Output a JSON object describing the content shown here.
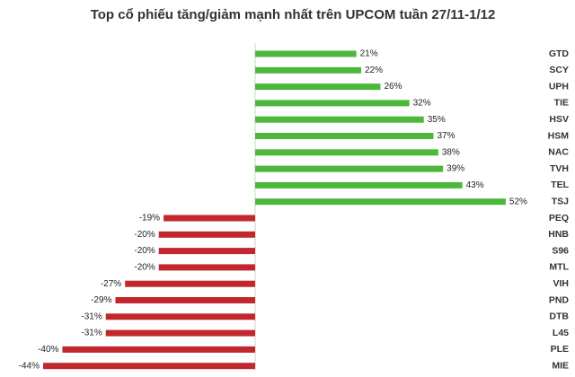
{
  "chart_data": {
    "type": "diverging-bar",
    "title": "Top cổ phiếu tăng/giảm mạnh nhất trên UPCOM tuần 27/11-1/12",
    "categories": [
      "GTD",
      "SCY",
      "UPH",
      "TIE",
      "HSV",
      "HSM",
      "NAC",
      "TVH",
      "TEL",
      "TSJ",
      "PEQ",
      "HNB",
      "S96",
      "MTL",
      "VIH",
      "PND",
      "DTB",
      "L45",
      "PLE",
      "MIE"
    ],
    "values": [
      21,
      22,
      26,
      32,
      35,
      37,
      38,
      39,
      43,
      52,
      -19,
      -20,
      -20,
      -20,
      -27,
      -29,
      -31,
      -31,
      -40,
      -44
    ],
    "value_labels": [
      "21%",
      "22%",
      "26%",
      "32%",
      "35%",
      "37%",
      "38%",
      "39%",
      "43%",
      "52%",
      "-19%",
      "-20%",
      "-20%",
      "-20%",
      "-27%",
      "-29%",
      "-31%",
      "-31%",
      "-40%",
      "-44%"
    ],
    "positive_color": "#4cb83a",
    "negative_color": "#c1272d"
  }
}
